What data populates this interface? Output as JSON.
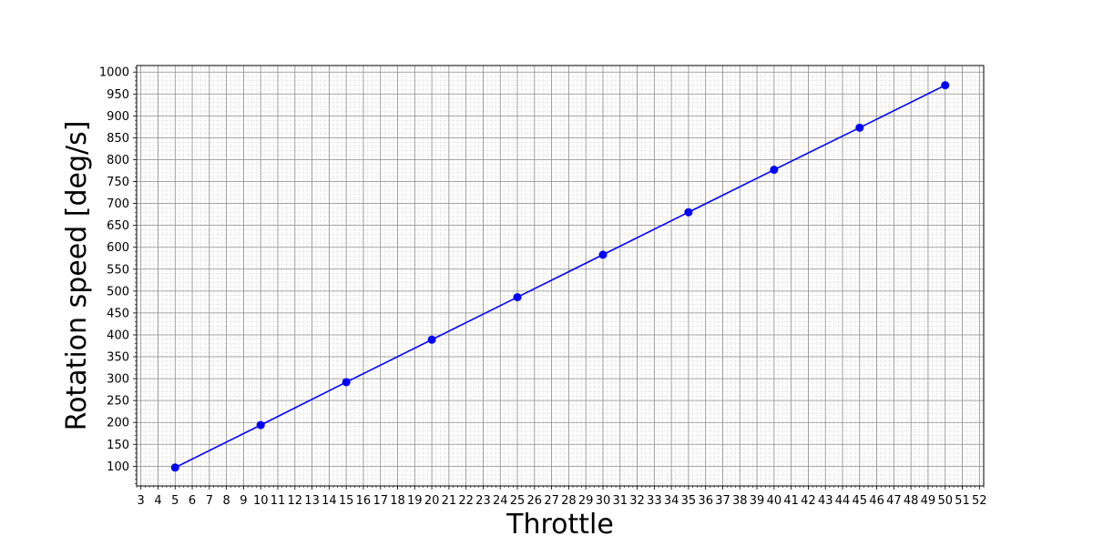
{
  "chart_data": {
    "type": "line",
    "title": "",
    "xlabel": "Throttle",
    "ylabel": "Rotation speed [deg/s]",
    "xlim": [
      2.75,
      52.25
    ],
    "ylim": [
      55,
      1015
    ],
    "x_ticks": [
      3,
      4,
      5,
      6,
      7,
      8,
      9,
      10,
      11,
      12,
      13,
      14,
      15,
      16,
      17,
      18,
      19,
      20,
      21,
      22,
      23,
      24,
      25,
      26,
      27,
      28,
      29,
      30,
      31,
      32,
      33,
      34,
      35,
      36,
      37,
      38,
      39,
      40,
      41,
      42,
      43,
      44,
      45,
      46,
      47,
      48,
      49,
      50,
      51,
      52
    ],
    "y_ticks": [
      100,
      150,
      200,
      250,
      300,
      350,
      400,
      450,
      500,
      550,
      600,
      650,
      700,
      750,
      800,
      850,
      900,
      950,
      1000
    ],
    "x_minor_step": 0.25,
    "y_minor_step": 10,
    "grid": true,
    "grid_minor": true,
    "series": [
      {
        "color": "#0000ff",
        "marker": "circle",
        "x": [
          5,
          10,
          15,
          20,
          25,
          30,
          35,
          40,
          45,
          50
        ],
        "y": [
          97,
          194,
          292,
          389,
          486,
          583,
          680,
          777,
          873,
          970
        ]
      }
    ]
  }
}
